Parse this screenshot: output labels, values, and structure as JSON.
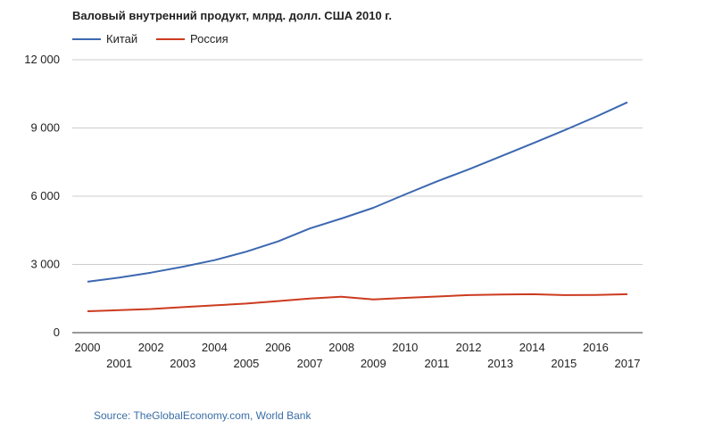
{
  "chart_data": {
    "type": "line",
    "title": "Валовый внутренний продукт, млрд. долл. США 2010 г.",
    "x": [
      2000,
      2001,
      2002,
      2003,
      2004,
      2005,
      2006,
      2007,
      2008,
      2009,
      2010,
      2011,
      2012,
      2013,
      2014,
      2015,
      2016,
      2017
    ],
    "x_tick_labels": [
      "2000",
      "2001",
      "2002",
      "2003",
      "2004",
      "2005",
      "2006",
      "2007",
      "2008",
      "2009",
      "2010",
      "2011",
      "2012",
      "2013",
      "2014",
      "2015",
      "2016",
      "2017"
    ],
    "y_ticks": [
      0,
      3000,
      6000,
      9000,
      12000
    ],
    "y_tick_labels": [
      "0",
      "3 000",
      "6 000",
      "9 000",
      "12 000"
    ],
    "ylim": [
      0,
      12000
    ],
    "grid": true,
    "legend_position": "top-left",
    "series": [
      {
        "name": "Китай",
        "color": "#3c68b0",
        "values": [
          2240,
          2420,
          2640,
          2900,
          3190,
          3560,
          4010,
          4580,
          5020,
          5490,
          6080,
          6650,
          7180,
          7740,
          8310,
          8890,
          9490,
          10130
        ]
      },
      {
        "name": "Россия",
        "color": "#cc3b1f",
        "values": [
          940,
          990,
          1040,
          1120,
          1200,
          1280,
          1390,
          1500,
          1580,
          1460,
          1530,
          1590,
          1650,
          1680,
          1690,
          1650,
          1660,
          1690
        ]
      }
    ],
    "source": "Source: TheGlobalEconomy.com, World Bank"
  }
}
